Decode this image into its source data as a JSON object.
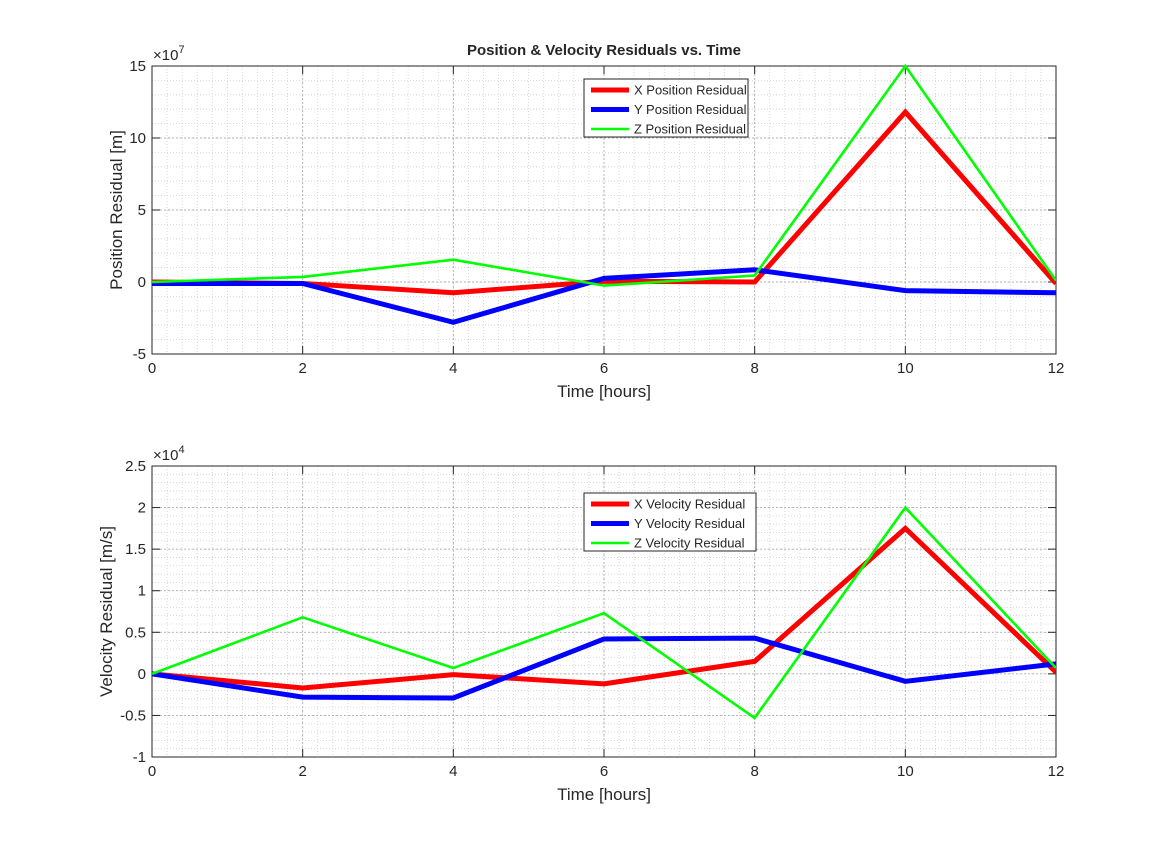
{
  "chart_data": [
    {
      "type": "line",
      "title": "Position & Velocity Residuals vs. Time",
      "xlabel": "Time [hours]",
      "ylabel": "Position Residual [m]",
      "xlim": [
        0,
        12
      ],
      "ylim": [
        -5,
        15
      ],
      "xticks": [
        0,
        2,
        4,
        6,
        8,
        10,
        12
      ],
      "yticks": [
        -5,
        0,
        5,
        10,
        15
      ],
      "xtick_labels": [
        "0",
        "2",
        "4",
        "6",
        "8",
        "10",
        "12"
      ],
      "ytick_labels": [
        "-5",
        "0",
        "5",
        "10",
        "15"
      ],
      "y_exponent_base": "×10",
      "y_exponent_power": "7",
      "y_scale_factor": 10000000,
      "grid": true,
      "minor_grid": true,
      "legend_position": "top-center",
      "x": [
        0,
        2,
        4,
        6,
        8,
        10,
        12
      ],
      "series": [
        {
          "name": "X Position Residual",
          "color": "#ff0000",
          "width": "thick",
          "values": [
            0.0,
            -0.1,
            -0.75,
            0.05,
            0.0,
            11.8,
            -0.1
          ]
        },
        {
          "name": "Y Position Residual",
          "color": "#0000ff",
          "width": "thick",
          "values": [
            -0.1,
            -0.1,
            -2.8,
            0.25,
            0.85,
            -0.6,
            -0.75
          ]
        },
        {
          "name": "Z Position Residual",
          "color": "#00ff00",
          "width": "thin",
          "values": [
            0.0,
            0.35,
            1.55,
            -0.25,
            0.45,
            15.0,
            0.1
          ]
        }
      ]
    },
    {
      "type": "line",
      "title": "",
      "xlabel": "Time [hours]",
      "ylabel": "Velocity Residual [m/s]",
      "xlim": [
        0,
        12
      ],
      "ylim": [
        -1,
        2.5
      ],
      "xticks": [
        0,
        2,
        4,
        6,
        8,
        10,
        12
      ],
      "yticks": [
        -1,
        -0.5,
        0,
        0.5,
        1,
        1.5,
        2,
        2.5
      ],
      "xtick_labels": [
        "0",
        "2",
        "4",
        "6",
        "8",
        "10",
        "12"
      ],
      "ytick_labels": [
        "-1",
        "-0.5",
        "0",
        "0.5",
        "1",
        "1.5",
        "2",
        "2.5"
      ],
      "y_exponent_base": "×10",
      "y_exponent_power": "4",
      "y_scale_factor": 10000,
      "grid": true,
      "minor_grid": true,
      "legend_position": "top-center",
      "x": [
        0,
        2,
        4,
        6,
        8,
        10,
        12
      ],
      "series": [
        {
          "name": "X Velocity Residual",
          "color": "#ff0000",
          "width": "thick",
          "values": [
            0.0,
            -0.17,
            -0.01,
            -0.12,
            0.15,
            1.75,
            0.02
          ]
        },
        {
          "name": "Y Velocity Residual",
          "color": "#0000ff",
          "width": "thick",
          "values": [
            0.0,
            -0.28,
            -0.29,
            0.42,
            0.43,
            -0.09,
            0.12
          ]
        },
        {
          "name": "Z Velocity Residual",
          "color": "#00ff00",
          "width": "thin",
          "values": [
            0.0,
            0.68,
            0.07,
            0.73,
            -0.53,
            2.0,
            0.07
          ]
        }
      ]
    }
  ]
}
